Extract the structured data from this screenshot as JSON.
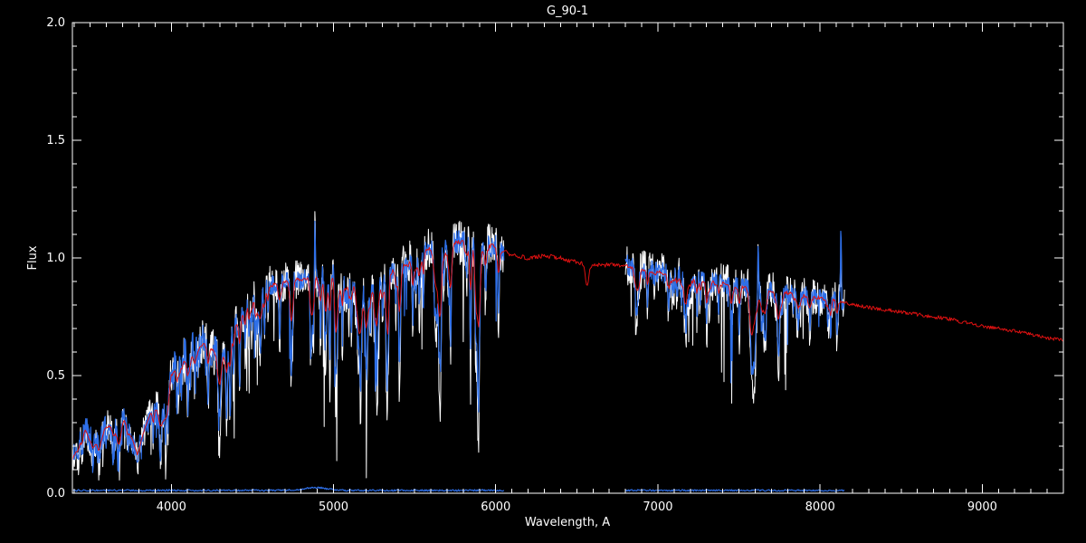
{
  "chart_data": {
    "type": "line",
    "title": "G_90-1",
    "xlabel": "Wavelength, A",
    "ylabel": "Flux",
    "xlim": [
      3390,
      9500
    ],
    "ylim": [
      0.0,
      2.0
    ],
    "xticks": [
      4000,
      5000,
      6000,
      7000,
      8000,
      9000
    ],
    "yticks": [
      0.0,
      0.5,
      1.0,
      1.5,
      2.0
    ],
    "x_minor_step": 100,
    "y_minor_step": 0.1,
    "grid": false,
    "legend": "none",
    "colors": {
      "background": "#000000",
      "axis": "#ffffff",
      "model": "#dd1111",
      "observed": "#2e6fe8",
      "raw": "#ffffff",
      "error": "#2e6fe8"
    },
    "series_names": [
      "model-spectrum-red",
      "observed-spectrum-blue",
      "raw-spectrum-white",
      "error-spectrum"
    ],
    "continuum": [
      [
        3390,
        0.14
      ],
      [
        3430,
        0.22
      ],
      [
        3470,
        0.27
      ],
      [
        3510,
        0.23
      ],
      [
        3550,
        0.2
      ],
      [
        3590,
        0.27
      ],
      [
        3630,
        0.3
      ],
      [
        3670,
        0.27
      ],
      [
        3710,
        0.31
      ],
      [
        3750,
        0.24
      ],
      [
        3790,
        0.18
      ],
      [
        3830,
        0.26
      ],
      [
        3870,
        0.34
      ],
      [
        3910,
        0.36
      ],
      [
        3950,
        0.33
      ],
      [
        4000,
        0.5
      ],
      [
        4050,
        0.56
      ],
      [
        4100,
        0.58
      ],
      [
        4150,
        0.61
      ],
      [
        4200,
        0.63
      ],
      [
        4250,
        0.61
      ],
      [
        4300,
        0.59
      ],
      [
        4350,
        0.67
      ],
      [
        4400,
        0.73
      ],
      [
        4450,
        0.79
      ],
      [
        4500,
        0.84
      ],
      [
        4600,
        0.88
      ],
      [
        4700,
        0.9
      ],
      [
        4800,
        0.91
      ],
      [
        4900,
        0.92
      ],
      [
        5000,
        0.93
      ],
      [
        5100,
        0.9
      ],
      [
        5200,
        0.86
      ],
      [
        5300,
        0.91
      ],
      [
        5400,
        0.96
      ],
      [
        5500,
        1.0
      ],
      [
        5600,
        1.04
      ],
      [
        5700,
        1.06
      ],
      [
        5800,
        1.07
      ],
      [
        5900,
        1.05
      ],
      [
        6000,
        1.05
      ],
      [
        6100,
        1.01
      ],
      [
        6200,
        1.0
      ],
      [
        6300,
        1.01
      ],
      [
        6400,
        1.0
      ],
      [
        6500,
        0.98
      ],
      [
        6600,
        0.97
      ],
      [
        6700,
        0.97
      ],
      [
        6800,
        0.97
      ],
      [
        6900,
        0.95
      ],
      [
        7000,
        0.94
      ],
      [
        7100,
        0.93
      ],
      [
        7200,
        0.92
      ],
      [
        7300,
        0.9
      ],
      [
        7400,
        0.89
      ],
      [
        7500,
        0.88
      ],
      [
        7600,
        0.87
      ],
      [
        7700,
        0.86
      ],
      [
        7800,
        0.85
      ],
      [
        7900,
        0.84
      ],
      [
        8000,
        0.83
      ],
      [
        8100,
        0.82
      ],
      [
        8200,
        0.8
      ],
      [
        8400,
        0.78
      ],
      [
        8600,
        0.76
      ],
      [
        8800,
        0.74
      ],
      [
        9000,
        0.71
      ],
      [
        9200,
        0.69
      ],
      [
        9400,
        0.66
      ],
      [
        9500,
        0.65
      ]
    ],
    "segments": [
      {
        "x_start": 3395,
        "x_end": 6050
      },
      {
        "x_start": 6800,
        "x_end": 8150
      }
    ],
    "absorption_lines": [
      [
        3933,
        0.45,
        6
      ],
      [
        3968,
        0.42,
        6
      ],
      [
        4045,
        0.2,
        4
      ],
      [
        4101,
        0.3,
        5
      ],
      [
        4144,
        0.22,
        4
      ],
      [
        4227,
        0.28,
        4
      ],
      [
        4300,
        0.3,
        8
      ],
      [
        4340,
        0.3,
        5
      ],
      [
        4383,
        0.28,
        4
      ],
      [
        4455,
        0.22,
        4
      ],
      [
        4530,
        0.2,
        5
      ],
      [
        4668,
        0.22,
        5
      ],
      [
        4861,
        0.32,
        5
      ],
      [
        4920,
        0.28,
        4
      ],
      [
        4957,
        0.22,
        4
      ],
      [
        5010,
        0.28,
        4
      ],
      [
        5110,
        0.22,
        4
      ],
      [
        5167,
        0.48,
        6
      ],
      [
        5205,
        0.38,
        6
      ],
      [
        5270,
        0.32,
        7
      ],
      [
        5328,
        0.25,
        5
      ],
      [
        5405,
        0.22,
        5
      ],
      [
        5530,
        0.2,
        5
      ],
      [
        5710,
        0.2,
        6
      ],
      [
        5890,
        0.5,
        6
      ],
      [
        6563,
        0.25,
        6
      ],
      [
        6867,
        0.2,
        7
      ],
      [
        7190,
        0.1,
        12
      ],
      [
        7594,
        0.38,
        11
      ],
      [
        7660,
        0.22,
        7
      ],
      [
        8050,
        0.12,
        6
      ]
    ],
    "emission_spikes": [
      [
        4885,
        0.32,
        2.5
      ],
      [
        7618,
        0.26,
        2.5
      ],
      [
        8128,
        0.32,
        2.5
      ]
    ],
    "random_lines": [
      {
        "count": 14,
        "wl_min": 3420,
        "wl_max": 3950,
        "depth_min": 0.1,
        "depth_max": 0.4,
        "width_min": 3,
        "width_max": 8
      },
      {
        "count": 90,
        "wl_min": 3960,
        "wl_max": 6040,
        "depth_min": 0.04,
        "depth_max": 0.28,
        "width_min": 2.5,
        "width_max": 6
      },
      {
        "count": 40,
        "wl_min": 6820,
        "wl_max": 8140,
        "depth_min": 0.03,
        "depth_max": 0.16,
        "width_min": 2.5,
        "width_max": 6
      }
    ],
    "noise": {
      "blue_amp": 0.034,
      "white_amp": 0.068,
      "boost_below": 4300,
      "boost_factor": 2.8,
      "white_spike_prob": 0.02,
      "white_spike_depth": 0.38,
      "blue_spike_prob": 0.012,
      "blue_spike_depth": 0.25
    },
    "model_noise": 0.007,
    "model_line_scale": 0.4,
    "model_width_scale": 1.7,
    "error": {
      "level": 0.012,
      "noise": 0.0035,
      "bump": [
        4890,
        0.012,
        70
      ]
    },
    "sample_step": 2.5,
    "model_step": 5,
    "seed": 77
  }
}
